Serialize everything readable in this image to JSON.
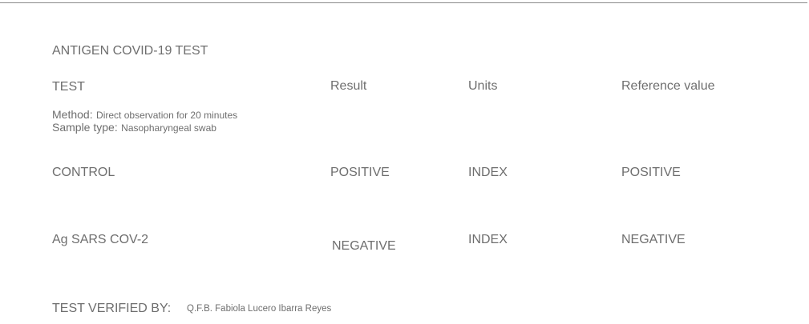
{
  "report": {
    "title": "ANTIGEN COVID-19 TEST",
    "headers": {
      "test": "TEST",
      "result": "Result",
      "units": "Units",
      "reference": "Reference value"
    },
    "method": {
      "label": "Method:",
      "value": "Direct observation for 20 minutes"
    },
    "sample": {
      "label": "Sample type:",
      "value": "Nasopharyngeal swab"
    },
    "rows": [
      {
        "test": "CONTROL",
        "result": "POSITIVE",
        "units": "INDEX",
        "reference": "POSITIVE"
      },
      {
        "test": "Ag SARS COV-2",
        "result": "NEGATIVE",
        "units": "INDEX",
        "reference": "NEGATIVE"
      }
    ],
    "verified": {
      "label": "TEST VERIFIED BY:",
      "name": "Q.F.B. Fabiola Lucero Ibarra Reyes"
    }
  }
}
